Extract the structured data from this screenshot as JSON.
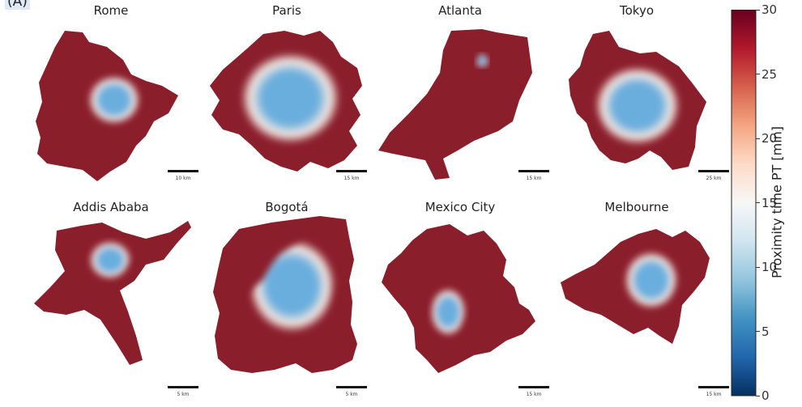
{
  "panel_label": "(A)",
  "colors": {
    "far": "#8b1e2b",
    "near": "#6aaede",
    "mid": "#f3e9e2"
  },
  "chart_data": {
    "type": "heatmap",
    "colorbar": {
      "label": "Proximity time PT [min]",
      "min": 0,
      "max": 30,
      "ticks": [
        0,
        5,
        10,
        15,
        20,
        25,
        30
      ],
      "colormap": "RdBu"
    },
    "cities": [
      {
        "name": "Rome",
        "scale": "10 km"
      },
      {
        "name": "Paris",
        "scale": "15 km"
      },
      {
        "name": "Atlanta",
        "scale": "15 km"
      },
      {
        "name": "Tokyo",
        "scale": "25 km"
      },
      {
        "name": "Addis Ababa",
        "scale": "5 km"
      },
      {
        "name": "Bogotá",
        "scale": "5 km"
      },
      {
        "name": "Mexico City",
        "scale": "15 km"
      },
      {
        "name": "Melbourne",
        "scale": "15 km"
      }
    ]
  }
}
